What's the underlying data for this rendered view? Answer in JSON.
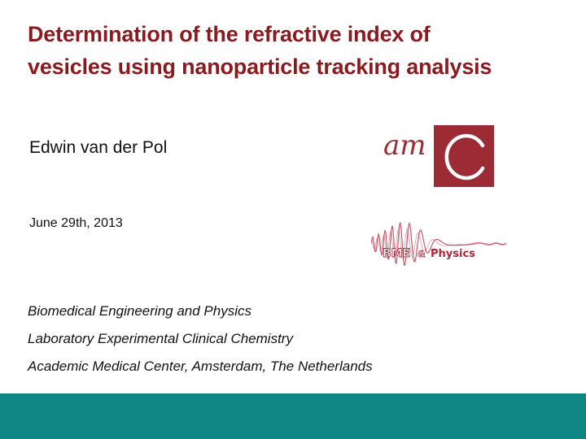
{
  "slide": {
    "title_line1": "Determination of the refractive index of",
    "title_line2": "vesicles using nanoparticle tracking analysis",
    "author": "Edwin van der Pol",
    "date": "June 29th, 2013",
    "affiliations": [
      "Biomedical Engineering and Physics",
      "Laboratory Experimental Clinical Chemistry",
      "Academic Medical Center, Amsterdam, The Netherlands"
    ]
  },
  "logos": {
    "amc": {
      "text": "am",
      "color": "#9c2b35"
    },
    "bme": {
      "text_bme": "BME",
      "text_amp": "&",
      "text_physics": "Physics",
      "color": "#b0243a"
    }
  },
  "colors": {
    "title": "#8b1a1f",
    "footer_bar": "#0e8683"
  }
}
